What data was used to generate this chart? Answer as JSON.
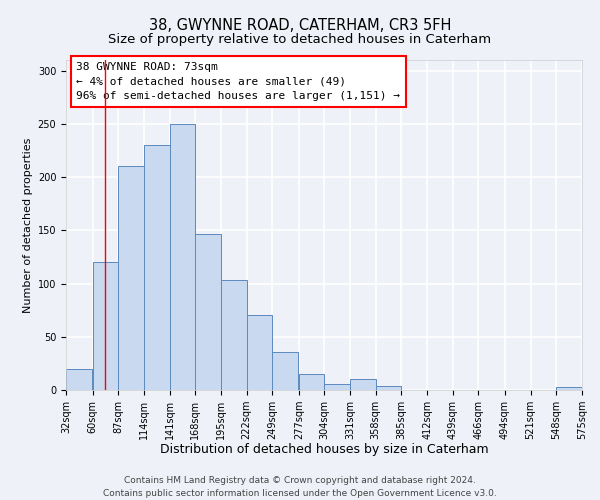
{
  "title": "38, GWYNNE ROAD, CATERHAM, CR3 5FH",
  "subtitle": "Size of property relative to detached houses in Caterham",
  "xlabel": "Distribution of detached houses by size in Caterham",
  "ylabel": "Number of detached properties",
  "bar_left_edges": [
    32,
    60,
    87,
    114,
    141,
    168,
    195,
    222,
    249,
    277,
    304,
    331,
    358,
    385,
    412,
    439,
    466,
    494,
    521,
    548
  ],
  "bar_heights": [
    20,
    120,
    210,
    230,
    250,
    147,
    103,
    70,
    36,
    15,
    6,
    10,
    4,
    0,
    0,
    0,
    0,
    0,
    0,
    3
  ],
  "bin_width": 27,
  "bar_facecolor": "#c9d9f0",
  "bar_edgecolor": "#5a8abf",
  "tick_labels": [
    "32sqm",
    "60sqm",
    "87sqm",
    "114sqm",
    "141sqm",
    "168sqm",
    "195sqm",
    "222sqm",
    "249sqm",
    "277sqm",
    "304sqm",
    "331sqm",
    "358sqm",
    "385sqm",
    "412sqm",
    "439sqm",
    "466sqm",
    "494sqm",
    "521sqm",
    "548sqm",
    "575sqm"
  ],
  "yticks": [
    0,
    50,
    100,
    150,
    200,
    250,
    300
  ],
  "ylim": [
    0,
    310
  ],
  "red_line_x": 73,
  "annotation_box_text": "38 GWYNNE ROAD: 73sqm\n← 4% of detached houses are smaller (49)\n96% of semi-detached houses are larger (1,151) →",
  "bg_color": "#eef2f8",
  "grid_color": "#ffffff",
  "footer_text": "Contains HM Land Registry data © Crown copyright and database right 2024.\nContains public sector information licensed under the Open Government Licence v3.0.",
  "title_fontsize": 10.5,
  "subtitle_fontsize": 9.5,
  "xlabel_fontsize": 9,
  "ylabel_fontsize": 8,
  "tick_fontsize": 7,
  "annotation_fontsize": 8,
  "footer_fontsize": 6.5
}
